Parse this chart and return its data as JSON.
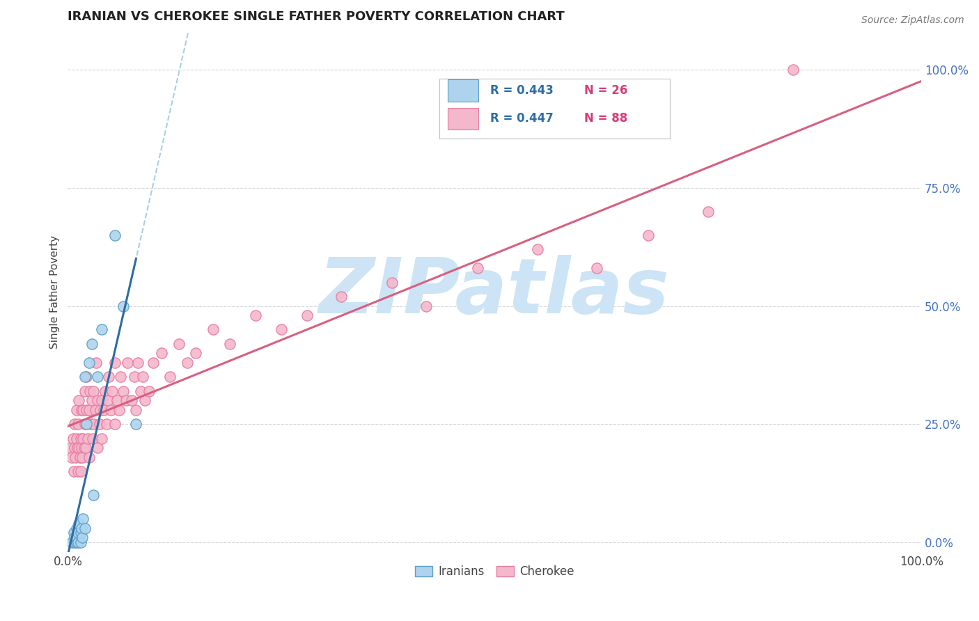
{
  "title": "IRANIAN VS CHEROKEE SINGLE FATHER POVERTY CORRELATION CHART",
  "source_text": "Source: ZipAtlas.com",
  "ylabel": "Single Father Poverty",
  "xlim": [
    0.0,
    1.0
  ],
  "ylim": [
    -0.02,
    1.08
  ],
  "xtick_positions": [
    0.0,
    1.0
  ],
  "xtick_labels": [
    "0.0%",
    "100.0%"
  ],
  "ytick_values": [
    0.0,
    0.25,
    0.5,
    0.75,
    1.0
  ],
  "ytick_labels": [
    "0.0%",
    "25.0%",
    "50.0%",
    "75.0%",
    "100.0%"
  ],
  "iranians_R": 0.443,
  "iranians_N": 26,
  "cherokee_R": 0.447,
  "cherokee_N": 88,
  "iranian_color": "#aed4ed",
  "cherokee_color": "#f4b8cc",
  "iranian_edge_color": "#5a9ec9",
  "cherokee_edge_color": "#e87ba0",
  "iranian_line_color": "#2e6da4",
  "cherokee_line_color": "#d95f7f",
  "dashed_line_color": "#9ecae1",
  "legend_box_color": "#ffffff",
  "legend_border_color": "#c0c0c0",
  "legend_R_color": "#2e6da4",
  "legend_N_color": "#d63c7a",
  "title_color": "#222222",
  "source_color": "#777777",
  "ytick_color": "#4472c4",
  "xtick_color": "#444444",
  "ylabel_color": "#444444",
  "watermark_color": "#cce4f5",
  "grid_color": "#cccccc",
  "background_color": "#ffffff",
  "iranians_x": [
    0.005,
    0.007,
    0.008,
    0.008,
    0.01,
    0.01,
    0.01,
    0.012,
    0.012,
    0.013,
    0.015,
    0.015,
    0.016,
    0.017,
    0.018,
    0.02,
    0.02,
    0.022,
    0.025,
    0.028,
    0.03,
    0.035,
    0.04,
    0.055,
    0.065,
    0.08
  ],
  "iranians_y": [
    0.0,
    0.02,
    0.0,
    0.01,
    0.0,
    0.01,
    0.03,
    0.0,
    0.02,
    0.04,
    0.0,
    0.02,
    0.03,
    0.01,
    0.05,
    0.03,
    0.35,
    0.25,
    0.38,
    0.42,
    0.1,
    0.35,
    0.45,
    0.65,
    0.5,
    0.25
  ],
  "cherokee_x": [
    0.003,
    0.005,
    0.006,
    0.007,
    0.008,
    0.008,
    0.009,
    0.01,
    0.01,
    0.011,
    0.012,
    0.012,
    0.013,
    0.013,
    0.014,
    0.015,
    0.015,
    0.016,
    0.016,
    0.017,
    0.018,
    0.018,
    0.019,
    0.02,
    0.02,
    0.021,
    0.022,
    0.022,
    0.023,
    0.025,
    0.025,
    0.026,
    0.027,
    0.028,
    0.029,
    0.03,
    0.03,
    0.032,
    0.033,
    0.035,
    0.035,
    0.037,
    0.038,
    0.04,
    0.04,
    0.042,
    0.044,
    0.045,
    0.047,
    0.048,
    0.05,
    0.052,
    0.055,
    0.055,
    0.058,
    0.06,
    0.062,
    0.065,
    0.068,
    0.07,
    0.075,
    0.078,
    0.08,
    0.082,
    0.085,
    0.088,
    0.09,
    0.095,
    0.1,
    0.11,
    0.12,
    0.13,
    0.14,
    0.15,
    0.17,
    0.19,
    0.22,
    0.25,
    0.28,
    0.32,
    0.38,
    0.42,
    0.48,
    0.55,
    0.62,
    0.68,
    0.75,
    0.85
  ],
  "cherokee_y": [
    0.2,
    0.18,
    0.22,
    0.15,
    0.2,
    0.25,
    0.18,
    0.22,
    0.28,
    0.2,
    0.15,
    0.25,
    0.2,
    0.3,
    0.18,
    0.15,
    0.22,
    0.2,
    0.28,
    0.18,
    0.22,
    0.28,
    0.2,
    0.25,
    0.32,
    0.2,
    0.28,
    0.35,
    0.22,
    0.18,
    0.28,
    0.32,
    0.25,
    0.3,
    0.22,
    0.25,
    0.32,
    0.28,
    0.38,
    0.2,
    0.3,
    0.25,
    0.28,
    0.22,
    0.3,
    0.28,
    0.32,
    0.25,
    0.3,
    0.35,
    0.28,
    0.32,
    0.25,
    0.38,
    0.3,
    0.28,
    0.35,
    0.32,
    0.3,
    0.38,
    0.3,
    0.35,
    0.28,
    0.38,
    0.32,
    0.35,
    0.3,
    0.32,
    0.38,
    0.4,
    0.35,
    0.42,
    0.38,
    0.4,
    0.45,
    0.42,
    0.48,
    0.45,
    0.48,
    0.52,
    0.55,
    0.5,
    0.58,
    0.62,
    0.58,
    0.65,
    0.7,
    1.0
  ]
}
